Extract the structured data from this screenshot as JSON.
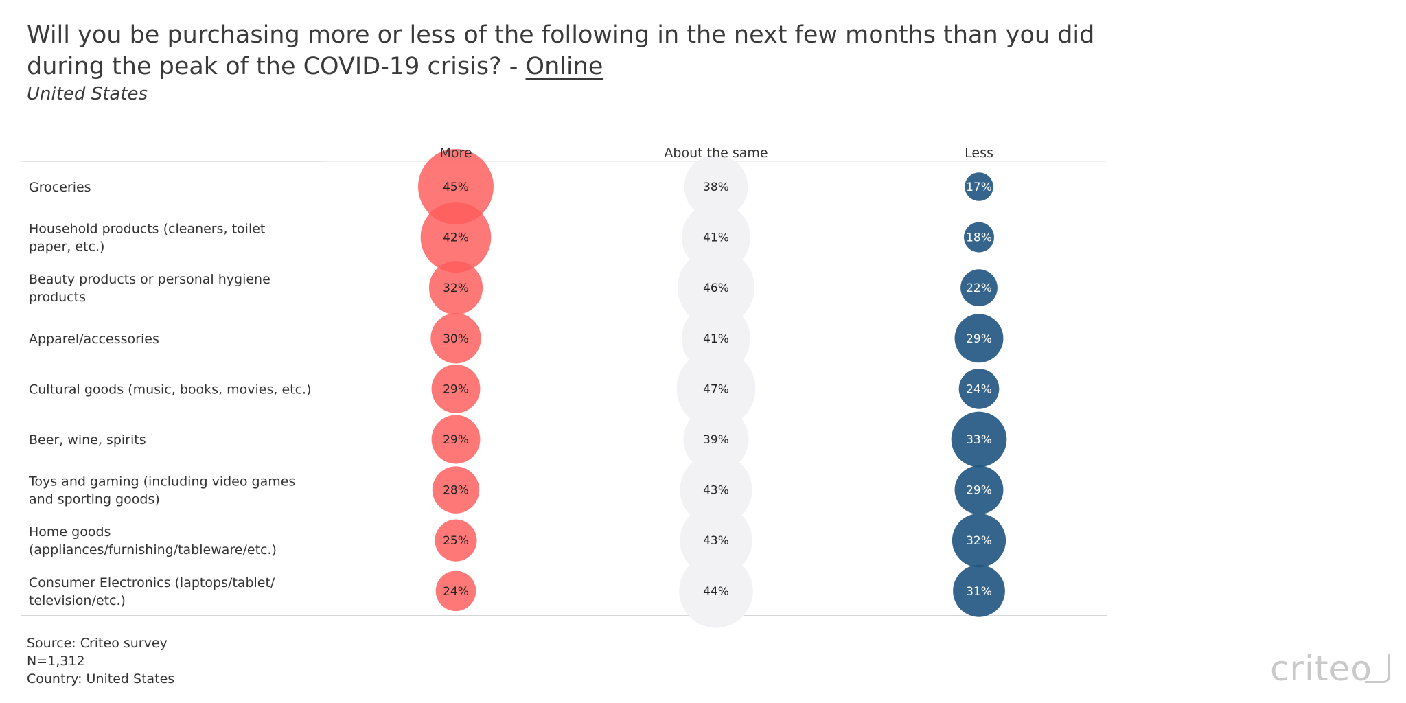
{
  "title": {
    "line1": "Will you be purchasing more or less of the following in the next few months than you did",
    "line2_prefix": "during the peak of the COVID-19 crisis? - ",
    "line2_link": "Online",
    "subtitle": "United States"
  },
  "chart_data": {
    "type": "table",
    "encoding": "bubble size proportional to percentage",
    "columns": [
      "More",
      "About the same",
      "Less"
    ],
    "colors": {
      "More": "#ff5a5a",
      "About the same": "#f2f2f4",
      "Less": "#1f5480"
    },
    "rows": [
      {
        "label_lines": [
          "Groceries"
        ],
        "values": [
          "45%",
          "38%",
          "17%"
        ]
      },
      {
        "label_lines": [
          "Household products (cleaners, toilet",
          "paper, etc.)"
        ],
        "values": [
          "42%",
          "41%",
          "18%"
        ]
      },
      {
        "label_lines": [
          "Beauty products or personal hygiene",
          "products"
        ],
        "values": [
          "32%",
          "46%",
          "22%"
        ]
      },
      {
        "label_lines": [
          "Apparel/accessories"
        ],
        "values": [
          "30%",
          "41%",
          "29%"
        ]
      },
      {
        "label_lines": [
          "Cultural goods (music, books, movies, etc.)"
        ],
        "values": [
          "29%",
          "47%",
          "24%"
        ]
      },
      {
        "label_lines": [
          "Beer, wine, spirits"
        ],
        "values": [
          "29%",
          "39%",
          "33%"
        ]
      },
      {
        "label_lines": [
          "Toys and gaming (including video games",
          "and sporting goods)"
        ],
        "values": [
          "28%",
          "43%",
          "29%"
        ]
      },
      {
        "label_lines": [
          "Home goods",
          "(appliances/furnishing/tableware/etc.)"
        ],
        "values": [
          "25%",
          "43%",
          "32%"
        ]
      },
      {
        "label_lines": [
          "Consumer Electronics (laptops/tablet/",
          "television/etc.)"
        ],
        "values": [
          "24%",
          "44%",
          "31%"
        ]
      }
    ]
  },
  "footer": {
    "source": "Source: Criteo survey",
    "n": "N=1,312",
    "country": "Country: United States"
  },
  "logo": {
    "text": "criteo"
  }
}
